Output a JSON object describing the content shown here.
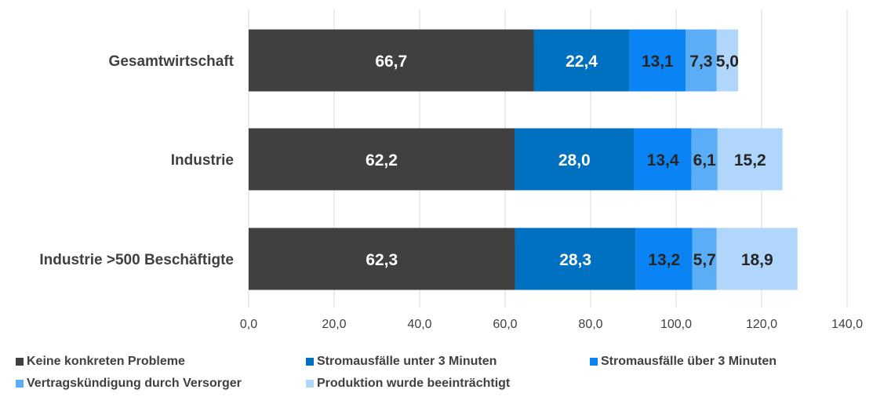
{
  "chart_data": {
    "type": "bar",
    "orientation": "horizontal",
    "stacked": true,
    "categories": [
      "Gesamtwirtschaft",
      "Industrie",
      "Industrie >500 Beschäftigte"
    ],
    "series": [
      {
        "name": "Keine konkreten Probleme",
        "values": [
          66.7,
          62.2,
          62.3
        ],
        "labels": [
          "66,7",
          "62,2",
          "62,3"
        ],
        "color": "#404040",
        "label_color": "#ffffff"
      },
      {
        "name": "Stromausfälle unter 3 Minuten",
        "values": [
          22.4,
          28.0,
          28.3
        ],
        "labels": [
          "22,4",
          "28,0",
          "28,3"
        ],
        "color": "#0070C0",
        "label_color": "#ffffff"
      },
      {
        "name": "Stromausfälle über 3 Minuten",
        "values": [
          13.1,
          13.4,
          13.2
        ],
        "labels": [
          "13,1",
          "13,4",
          "13,2"
        ],
        "color": "#0A84F5",
        "label_color": "#262626"
      },
      {
        "name": "Vertragskündigung durch Versorger",
        "values": [
          7.3,
          6.1,
          5.7
        ],
        "labels": [
          "7,3",
          "6,1",
          "5,7"
        ],
        "color": "#5BAEF5",
        "label_color": "#262626"
      },
      {
        "name": "Produktion wurde beeinträchtigt",
        "values": [
          5.0,
          15.2,
          18.9
        ],
        "labels": [
          "5,0",
          "15,2",
          "18,9"
        ],
        "color": "#B0D6FB",
        "label_color": "#262626"
      }
    ],
    "x_ticks": [
      "0,0",
      "20,0",
      "40,0",
      "60,0",
      "80,0",
      "100,0",
      "120,0",
      "140,0"
    ],
    "xlim": [
      0,
      140
    ],
    "x_tick_step": 20,
    "grid": "vertical",
    "legend_position": "bottom",
    "title": "",
    "xlabel": "",
    "ylabel": ""
  }
}
